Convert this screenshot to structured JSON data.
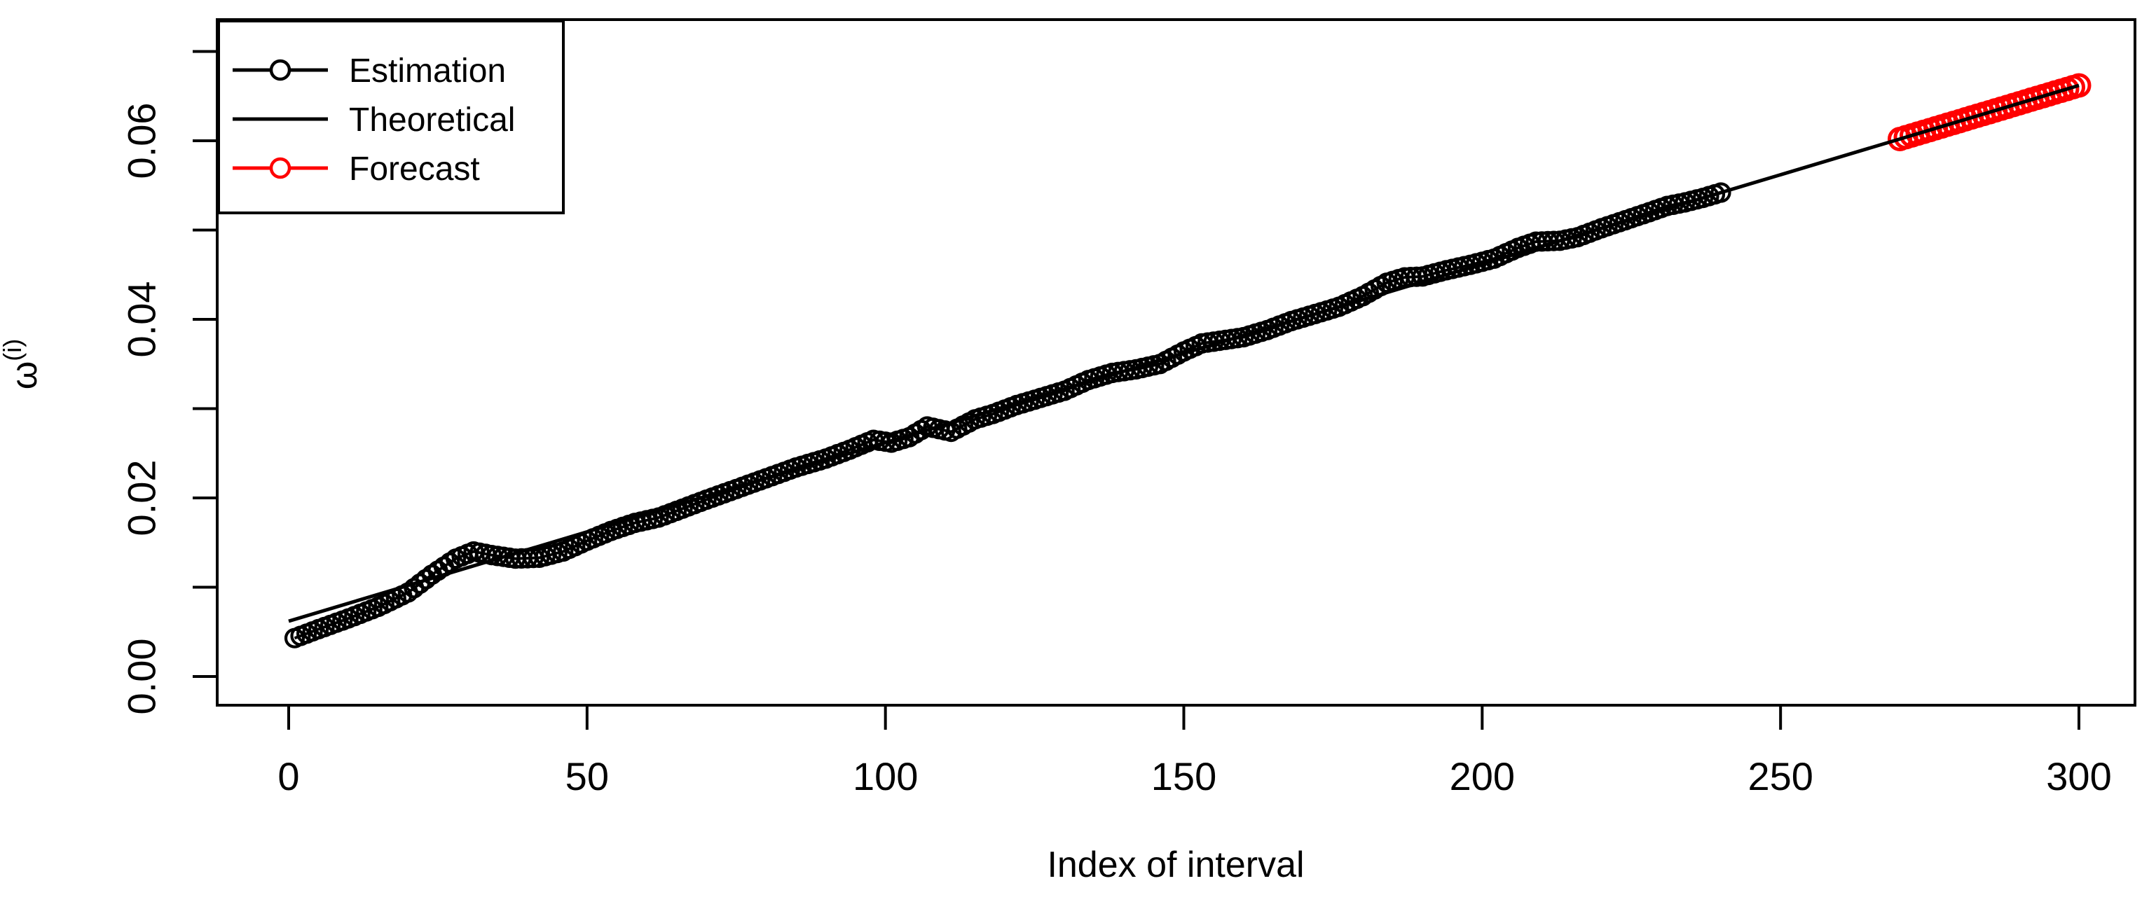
{
  "figure": {
    "x_label": "Index of interval",
    "y_label_base": "ω",
    "y_label_superscript": "(i)",
    "background_color": "#ffffff",
    "frame_color": "#000000"
  },
  "legend": {
    "position": "top-left",
    "items": [
      {
        "label": "Estimation",
        "color": "#000000",
        "marker": "line-open-circle"
      },
      {
        "label": "Theoretical",
        "color": "#000000",
        "marker": "line"
      },
      {
        "label": "Forecast",
        "color": "#ff0000",
        "marker": "line-open-circle"
      }
    ]
  },
  "axes": {
    "x": {
      "ticks": [
        0,
        50,
        100,
        150,
        200,
        250,
        300
      ],
      "tick_labels": [
        "0",
        "50",
        "100",
        "150",
        "200",
        "250",
        "300"
      ],
      "range": [
        -11,
        312
      ],
      "grid": false
    },
    "y": {
      "ticks": [
        0.0,
        0.01,
        0.02,
        0.03,
        0.04,
        0.05,
        0.06,
        0.07
      ],
      "labeled_ticks": [
        0.0,
        0.02,
        0.04,
        0.06
      ],
      "tick_labels": [
        "0.00",
        "0.02",
        "0.04",
        "0.06"
      ],
      "range": [
        -0.003,
        0.0736
      ],
      "grid": false
    }
  },
  "chart_data": {
    "type": "line",
    "title": "",
    "xlabel": "Index of interval",
    "ylabel": "omega^(i)",
    "xlim": [
      -11,
      312
    ],
    "ylim": [
      -0.003,
      0.0736
    ],
    "legend_position": "top-left",
    "series": [
      {
        "name": "Estimation",
        "style": "line-with-open-circles",
        "color": "#000000",
        "x_start": 1,
        "x_end": 240,
        "x_step": 1,
        "anchor_points": [
          [
            1,
            0.0043
          ],
          [
            5,
            0.0053
          ],
          [
            10,
            0.0065
          ],
          [
            15,
            0.0078
          ],
          [
            20,
            0.0094
          ],
          [
            24,
            0.0114
          ],
          [
            28,
            0.0132
          ],
          [
            31,
            0.014
          ],
          [
            34,
            0.0136
          ],
          [
            38,
            0.0132
          ],
          [
            42,
            0.0133
          ],
          [
            46,
            0.014
          ],
          [
            50,
            0.0152
          ],
          [
            54,
            0.0163
          ],
          [
            58,
            0.0172
          ],
          [
            62,
            0.0178
          ],
          [
            66,
            0.0188
          ],
          [
            70,
            0.0198
          ],
          [
            75,
            0.021
          ],
          [
            80,
            0.0222
          ],
          [
            85,
            0.0234
          ],
          [
            90,
            0.0244
          ],
          [
            94,
            0.0254
          ],
          [
            98,
            0.0265
          ],
          [
            101,
            0.0262
          ],
          [
            104,
            0.0268
          ],
          [
            107,
            0.028
          ],
          [
            111,
            0.0274
          ],
          [
            115,
            0.0288
          ],
          [
            118,
            0.0294
          ],
          [
            122,
            0.0304
          ],
          [
            126,
            0.0312
          ],
          [
            130,
            0.032
          ],
          [
            134,
            0.0332
          ],
          [
            138,
            0.034
          ],
          [
            142,
            0.0344
          ],
          [
            146,
            0.035
          ],
          [
            150,
            0.0364
          ],
          [
            153,
            0.0373
          ],
          [
            156,
            0.0376
          ],
          [
            160,
            0.038
          ],
          [
            164,
            0.0388
          ],
          [
            168,
            0.0398
          ],
          [
            172,
            0.0406
          ],
          [
            176,
            0.0414
          ],
          [
            180,
            0.0426
          ],
          [
            184,
            0.0441
          ],
          [
            187,
            0.0447
          ],
          [
            190,
            0.0448
          ],
          [
            194,
            0.0455
          ],
          [
            198,
            0.0461
          ],
          [
            202,
            0.0468
          ],
          [
            206,
            0.048
          ],
          [
            209,
            0.0487
          ],
          [
            213,
            0.0488
          ],
          [
            216,
            0.0492
          ],
          [
            220,
            0.0502
          ],
          [
            224,
            0.0511
          ],
          [
            228,
            0.052
          ],
          [
            231,
            0.0527
          ],
          [
            234,
            0.0531
          ],
          [
            237,
            0.0536
          ],
          [
            240,
            0.0542
          ]
        ]
      },
      {
        "name": "Theoretical",
        "style": "line",
        "color": "#000000",
        "points": [
          [
            0,
            0.0062
          ],
          [
            300,
            0.0662
          ]
        ]
      },
      {
        "name": "Forecast",
        "style": "line-with-open-circles",
        "color": "#ff0000",
        "x_start": 270,
        "x_end": 300,
        "x_step": 1,
        "values": [
          0.0602,
          0.0604,
          0.0606,
          0.0608,
          0.061,
          0.0612,
          0.0614,
          0.0616,
          0.0618,
          0.062,
          0.0622,
          0.0624,
          0.0626,
          0.0628,
          0.063,
          0.0632,
          0.0634,
          0.0636,
          0.0638,
          0.064,
          0.0642,
          0.0644,
          0.0646,
          0.0648,
          0.065,
          0.0652,
          0.0654,
          0.0656,
          0.0658,
          0.066,
          0.0662
        ]
      }
    ]
  }
}
